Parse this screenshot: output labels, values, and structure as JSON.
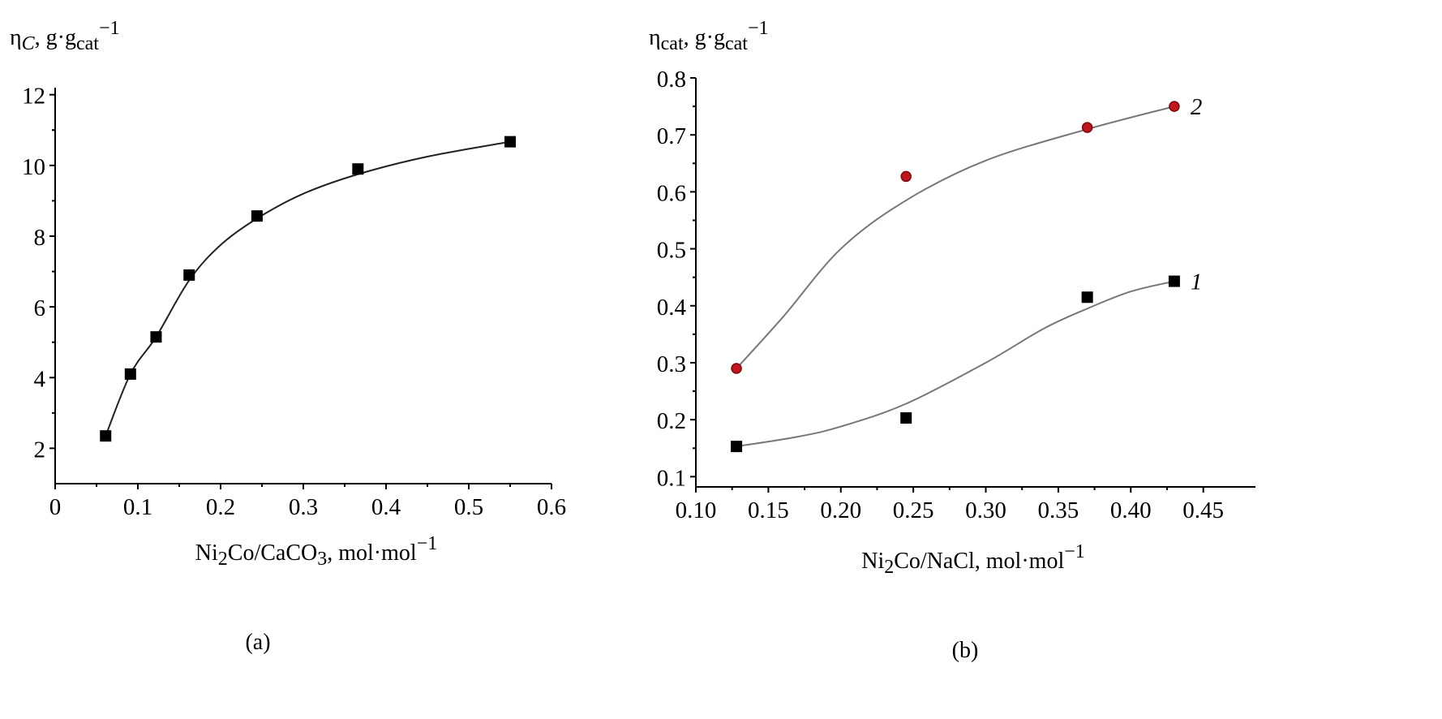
{
  "chart_data": [
    {
      "type": "scatter",
      "panel_label": "(a)",
      "ylabel": [
        {
          "t": "η"
        },
        {
          "t": "C",
          "sub": true,
          "italic": true
        },
        {
          "t": ", g·g"
        },
        {
          "t": "cat",
          "sub": true
        },
        {
          "t": "−1",
          "sup": true
        }
      ],
      "xlabel": [
        {
          "t": "Ni"
        },
        {
          "t": "2",
          "sub": true
        },
        {
          "t": "Co/CaCO"
        },
        {
          "t": "3",
          "sub": true
        },
        {
          "t": ", mol·mol"
        },
        {
          "t": "−1",
          "sup": true
        }
      ],
      "xlim": [
        0,
        0.6
      ],
      "ylim": [
        1,
        12.2
      ],
      "xticks": [
        "0",
        "0.1",
        "0.2",
        "0.3",
        "0.4",
        "0.5",
        "0.6"
      ],
      "yticks": [
        "2",
        "4",
        "6",
        "8",
        "10",
        "12"
      ],
      "grid": false,
      "series": [
        {
          "marker": "square",
          "color": "#000000",
          "x": [
            0.061,
            0.091,
            0.122,
            0.162,
            0.244,
            0.366,
            0.55
          ],
          "y": [
            2.35,
            4.1,
            5.15,
            6.9,
            8.57,
            9.9,
            10.67
          ],
          "fit_x": [
            0.061,
            0.091,
            0.122,
            0.162,
            0.2,
            0.244,
            0.3,
            0.366,
            0.45,
            0.55
          ],
          "fit_y": [
            2.35,
            4.1,
            5.15,
            6.75,
            7.75,
            8.5,
            9.2,
            9.75,
            10.25,
            10.67
          ]
        }
      ]
    },
    {
      "type": "scatter",
      "panel_label": "(b)",
      "ylabel": [
        {
          "t": "η"
        },
        {
          "t": "cat",
          "sub": true
        },
        {
          "t": ", g·g"
        },
        {
          "t": "cat",
          "sub": true
        },
        {
          "t": "−1",
          "sup": true
        }
      ],
      "xlabel": [
        {
          "t": "Ni"
        },
        {
          "t": "2",
          "sub": true
        },
        {
          "t": "Co/NaCl, mol·mol"
        },
        {
          "t": "−1",
          "sup": true
        }
      ],
      "xlim": [
        0.1,
        0.486
      ],
      "ylim": [
        0.082,
        0.8
      ],
      "xticks": [
        "0.10",
        "0.15",
        "0.20",
        "0.25",
        "0.30",
        "0.35",
        "0.40",
        "0.45"
      ],
      "yticks": [
        "0.1",
        "0.2",
        "0.3",
        "0.4",
        "0.5",
        "0.6",
        "0.7",
        "0.8"
      ],
      "grid": false,
      "series": [
        {
          "name": "1",
          "marker": "square",
          "color": "#000000",
          "x": [
            0.128,
            0.245,
            0.37,
            0.43
          ],
          "y": [
            0.153,
            0.203,
            0.415,
            0.443
          ],
          "fit_x": [
            0.128,
            0.17,
            0.2,
            0.245,
            0.3,
            0.34,
            0.37,
            0.4,
            0.43
          ],
          "fit_y": [
            0.153,
            0.17,
            0.188,
            0.228,
            0.3,
            0.36,
            0.395,
            0.425,
            0.443
          ]
        },
        {
          "name": "2",
          "marker": "circle",
          "color": "#c0151b",
          "x": [
            0.128,
            0.245,
            0.37,
            0.43
          ],
          "y": [
            0.29,
            0.627,
            0.713,
            0.75
          ],
          "fit_x": [
            0.128,
            0.16,
            0.2,
            0.245,
            0.3,
            0.37,
            0.43
          ],
          "fit_y": [
            0.29,
            0.38,
            0.5,
            0.585,
            0.655,
            0.71,
            0.75
          ]
        }
      ]
    }
  ]
}
